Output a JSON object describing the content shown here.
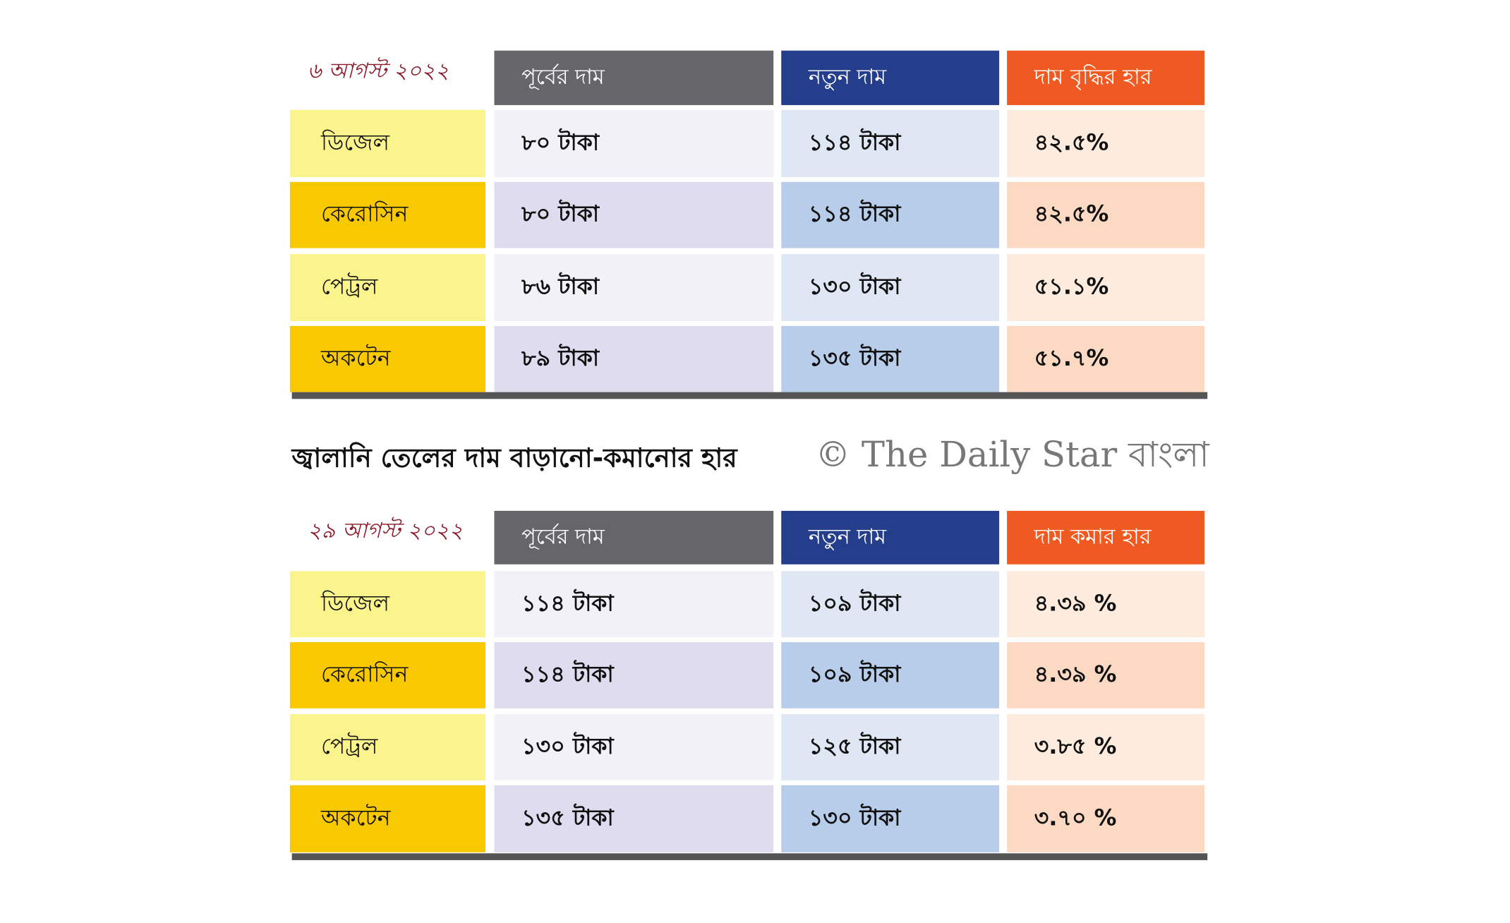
{
  "tables": [
    {
      "date": "৬ আগস্ট ২০২২",
      "headers": [
        "পূর্বের দাম",
        "নতুন দাম",
        "দাম বৃদ্ধির হার"
      ],
      "rows": [
        [
          "ডিজেল",
          "৮০ টাকা",
          "১১৪ টাকা",
          "৪২.৫%"
        ],
        [
          "কেরোসিন",
          "৮০ টাকা",
          "১১৪ টাকা",
          "৪২.৫%"
        ],
        [
          "পেট্রল",
          "৮৬ টাকা",
          "১৩০ টাকা",
          "৫১.১%"
        ],
        [
          "অকটেন",
          "৮৯ টাকা",
          "১৩৫ টাকা",
          "৫১.৭%"
        ]
      ]
    },
    {
      "date": "২৯ আগস্ট ২০২২",
      "headers": [
        "পূর্বের দাম",
        "নতুন দাম",
        "দাম কমার হার"
      ],
      "rows": [
        [
          "ডিজেল",
          "১১৪ টাকা",
          "১০৯ টাকা",
          "৪.৩৯ %"
        ],
        [
          "কেরোসিন",
          "১১৪ টাকা",
          "১০৯ টাকা",
          "৪.৩৯ %"
        ],
        [
          "পেট্রল",
          "১৩০ টাকা",
          "১২৫ টাকা",
          "৩.৮৫ %"
        ],
        [
          "অকটেন",
          "১৩৫ টাকা",
          "১৩০ টাকা",
          "৩.৭০ %"
        ]
      ]
    }
  ],
  "title": "জ্বালানি তেলের দাম বাড়ানো-কমানোর হার",
  "watermark": "© The Daily Star বাংলা"
}
